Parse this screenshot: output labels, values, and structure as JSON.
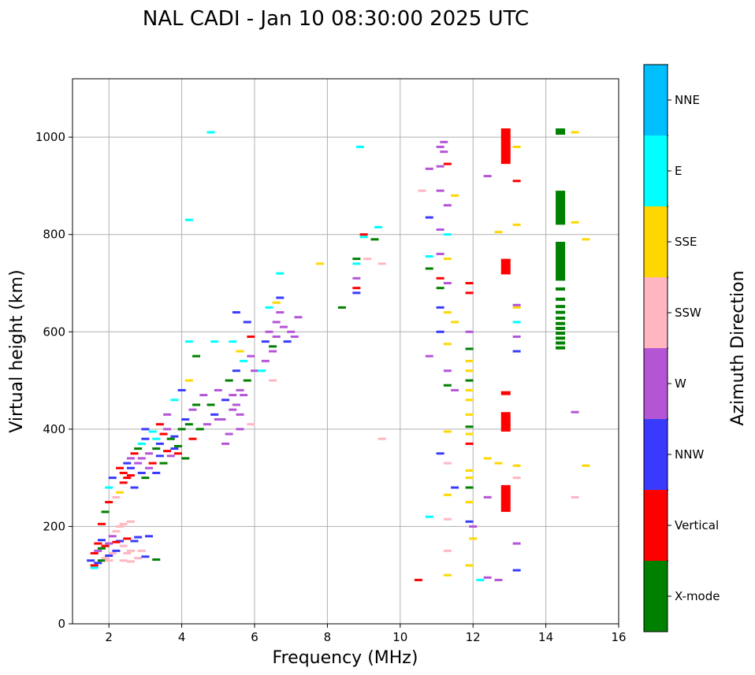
{
  "chart_data": {
    "type": "scatter",
    "title": "NAL CADI - Jan 10 08:30:00 2025 UTC",
    "xlabel": "Frequency (MHz)",
    "ylabel": "Virtual height (km)",
    "xlim": [
      1,
      16
    ],
    "ylim": [
      0,
      1120
    ],
    "xticks": [
      2,
      4,
      6,
      8,
      10,
      12,
      14,
      16
    ],
    "yticks": [
      0,
      200,
      400,
      600,
      800,
      1000
    ],
    "grid": true,
    "colorbar": {
      "label": "Azimuth Direction",
      "categories": [
        {
          "name": "X-mode",
          "color": "#008000"
        },
        {
          "name": "Vertical",
          "color": "#ff0000"
        },
        {
          "name": "NNW",
          "color": "#3a3aff"
        },
        {
          "name": "W",
          "color": "#b455d6"
        },
        {
          "name": "SSW",
          "color": "#ffb6c1"
        },
        {
          "name": "SSE",
          "color": "#ffd700"
        },
        {
          "name": "E",
          "color": "#00ffff"
        },
        {
          "name": "NNE",
          "color": "#00bfff"
        }
      ]
    },
    "points": [
      [
        1.6,
        120,
        "Vertical"
      ],
      [
        1.7,
        125,
        "NNW"
      ],
      [
        1.8,
        130,
        "X-mode"
      ],
      [
        1.9,
        135,
        "SSW"
      ],
      [
        2.0,
        140,
        "NNW"
      ],
      [
        1.6,
        145,
        "Vertical"
      ],
      [
        1.7,
        150,
        "W"
      ],
      [
        1.8,
        155,
        "X-mode"
      ],
      [
        2.1,
        145,
        "SSW"
      ],
      [
        2.2,
        150,
        "NNW"
      ],
      [
        1.9,
        160,
        "Vertical"
      ],
      [
        2.0,
        165,
        "W"
      ],
      [
        2.3,
        170,
        "NNW"
      ],
      [
        2.5,
        175,
        "Vertical"
      ],
      [
        2.4,
        160,
        "SSW"
      ],
      [
        2.6,
        150,
        "SSW"
      ],
      [
        1.7,
        165,
        "Vertical"
      ],
      [
        1.8,
        172,
        "NNW"
      ],
      [
        1.5,
        130,
        "NNW"
      ],
      [
        1.6,
        115,
        "E"
      ],
      [
        2.1,
        180,
        "W"
      ],
      [
        2.2,
        190,
        "SSW"
      ],
      [
        2.4,
        205,
        "SSW"
      ],
      [
        2.6,
        210,
        "SSW"
      ],
      [
        2.3,
        200,
        "SSW"
      ],
      [
        2.0,
        130,
        "SSW"
      ],
      [
        2.4,
        130,
        "SSW"
      ],
      [
        2.6,
        128,
        "SSW"
      ],
      [
        2.8,
        135,
        "SSW"
      ],
      [
        2.5,
        145,
        "SSW"
      ],
      [
        3.1,
        180,
        "NNW"
      ],
      [
        2.8,
        178,
        "NNW"
      ],
      [
        2.9,
        150,
        "SSW"
      ],
      [
        3.3,
        132,
        "X-mode"
      ],
      [
        3.0,
        138,
        "NNW"
      ],
      [
        2.2,
        168,
        "Vertical"
      ],
      [
        2.7,
        170,
        "NNW"
      ],
      [
        1.8,
        205,
        "Vertical"
      ],
      [
        1.9,
        230,
        "X-mode"
      ],
      [
        2.0,
        250,
        "Vertical"
      ],
      [
        2.0,
        280,
        "E"
      ],
      [
        2.1,
        300,
        "NNW"
      ],
      [
        2.2,
        260,
        "SSW"
      ],
      [
        2.3,
        320,
        "Vertical"
      ],
      [
        2.4,
        310,
        "Vertical"
      ],
      [
        2.5,
        330,
        "NNW"
      ],
      [
        2.6,
        340,
        "W"
      ],
      [
        2.7,
        350,
        "Vertical"
      ],
      [
        2.8,
        360,
        "X-mode"
      ],
      [
        2.9,
        370,
        "E"
      ],
      [
        3.0,
        380,
        "NNW"
      ],
      [
        3.1,
        350,
        "W"
      ],
      [
        3.2,
        330,
        "Vertical"
      ],
      [
        3.3,
        360,
        "X-mode"
      ],
      [
        3.4,
        370,
        "NNW"
      ],
      [
        3.5,
        390,
        "Vertical"
      ],
      [
        3.6,
        400,
        "W"
      ],
      [
        3.7,
        380,
        "X-mode"
      ],
      [
        3.8,
        360,
        "NNW"
      ],
      [
        3.9,
        350,
        "Vertical"
      ],
      [
        4.0,
        400,
        "X-mode"
      ],
      [
        4.1,
        420,
        "NNW"
      ],
      [
        4.2,
        410,
        "X-mode"
      ],
      [
        4.3,
        440,
        "W"
      ],
      [
        2.4,
        290,
        "Vertical"
      ],
      [
        2.5,
        300,
        "Vertical"
      ],
      [
        2.6,
        320,
        "NNW"
      ],
      [
        2.3,
        270,
        "SSE"
      ],
      [
        2.7,
        280,
        "NNW"
      ],
      [
        2.8,
        330,
        "W"
      ],
      [
        2.9,
        310,
        "NNW"
      ],
      [
        3.0,
        300,
        "X-mode"
      ],
      [
        3.1,
        320,
        "W"
      ],
      [
        3.3,
        310,
        "NNW"
      ],
      [
        3.5,
        330,
        "X-mode"
      ],
      [
        3.7,
        345,
        "W"
      ],
      [
        3.9,
        365,
        "X-mode"
      ],
      [
        4.1,
        340,
        "X-mode"
      ],
      [
        4.3,
        380,
        "Vertical"
      ],
      [
        3.2,
        395,
        "E"
      ],
      [
        3.4,
        410,
        "Vertical"
      ],
      [
        3.6,
        430,
        "W"
      ],
      [
        3.8,
        460,
        "E"
      ],
      [
        4.0,
        480,
        "NNW"
      ],
      [
        4.2,
        500,
        "SSE"
      ],
      [
        4.4,
        450,
        "X-mode"
      ],
      [
        4.6,
        470,
        "W"
      ],
      [
        3.0,
        400,
        "NNW"
      ],
      [
        3.3,
        380,
        "E"
      ],
      [
        2.9,
        340,
        "W"
      ],
      [
        2.6,
        305,
        "Vertical"
      ],
      [
        3.4,
        345,
        "NNW"
      ],
      [
        3.6,
        355,
        "Vertical"
      ],
      [
        3.8,
        385,
        "NNW"
      ],
      [
        4.5,
        400,
        "X-mode"
      ],
      [
        4.7,
        410,
        "W"
      ],
      [
        4.8,
        450,
        "X-mode"
      ],
      [
        4.9,
        430,
        "NNW"
      ],
      [
        5.0,
        480,
        "W"
      ],
      [
        5.1,
        420,
        "W"
      ],
      [
        5.2,
        460,
        "NNW"
      ],
      [
        5.3,
        500,
        "X-mode"
      ],
      [
        5.4,
        440,
        "W"
      ],
      [
        5.5,
        520,
        "NNW"
      ],
      [
        5.6,
        480,
        "W"
      ],
      [
        5.7,
        540,
        "E"
      ],
      [
        5.8,
        500,
        "X-mode"
      ],
      [
        5.9,
        550,
        "W"
      ],
      [
        6.0,
        520,
        "W"
      ],
      [
        5.5,
        450,
        "W"
      ],
      [
        5.6,
        430,
        "W"
      ],
      [
        5.7,
        470,
        "W"
      ],
      [
        5.3,
        390,
        "W"
      ],
      [
        5.6,
        400,
        "W"
      ],
      [
        5.9,
        410,
        "SSW"
      ],
      [
        5.2,
        370,
        "W"
      ],
      [
        5.6,
        560,
        "SSE"
      ],
      [
        5.4,
        580,
        "E"
      ],
      [
        5.9,
        590,
        "Vertical"
      ],
      [
        5.8,
        620,
        "NNW"
      ],
      [
        5.5,
        640,
        "NNW"
      ],
      [
        4.9,
        580,
        "E"
      ],
      [
        4.4,
        550,
        "X-mode"
      ],
      [
        4.2,
        580,
        "E"
      ],
      [
        4.8,
        1010,
        "E"
      ],
      [
        4.2,
        830,
        "E"
      ],
      [
        5.0,
        420,
        "W"
      ],
      [
        5.4,
        470,
        "W"
      ],
      [
        6.2,
        520,
        "E"
      ],
      [
        6.3,
        580,
        "NNW"
      ],
      [
        6.4,
        600,
        "W"
      ],
      [
        6.5,
        570,
        "X-mode"
      ],
      [
        6.6,
        620,
        "W"
      ],
      [
        6.7,
        640,
        "W"
      ],
      [
        6.5,
        560,
        "W"
      ],
      [
        6.6,
        590,
        "W"
      ],
      [
        6.8,
        610,
        "W"
      ],
      [
        7.0,
        600,
        "W"
      ],
      [
        7.1,
        590,
        "W"
      ],
      [
        6.4,
        650,
        "E"
      ],
      [
        6.6,
        660,
        "SSE"
      ],
      [
        6.7,
        670,
        "NNW"
      ],
      [
        6.3,
        540,
        "W"
      ],
      [
        6.5,
        500,
        "SSW"
      ],
      [
        6.7,
        720,
        "E"
      ],
      [
        7.2,
        630,
        "W"
      ],
      [
        6.9,
        580,
        "NNW"
      ],
      [
        7.8,
        740,
        "SSE"
      ],
      [
        8.4,
        650,
        "X-mode"
      ],
      [
        8.8,
        680,
        "NNW"
      ],
      [
        8.8,
        690,
        "Vertical"
      ],
      [
        8.8,
        710,
        "W"
      ],
      [
        8.8,
        740,
        "E"
      ],
      [
        8.8,
        750,
        "X-mode"
      ],
      [
        9.0,
        800,
        "Vertical"
      ],
      [
        9.1,
        750,
        "SSW"
      ],
      [
        9.0,
        795,
        "E"
      ],
      [
        8.9,
        980,
        "E"
      ],
      [
        9.3,
        790,
        "X-mode"
      ],
      [
        9.4,
        815,
        "E"
      ],
      [
        9.5,
        740,
        "SSW"
      ],
      [
        9.5,
        380,
        "SSW"
      ],
      [
        10.5,
        90,
        "Vertical"
      ],
      [
        10.8,
        220,
        "E"
      ],
      [
        10.8,
        550,
        "W"
      ],
      [
        10.8,
        730,
        "X-mode"
      ],
      [
        10.8,
        755,
        "E"
      ],
      [
        10.8,
        835,
        "NNW"
      ],
      [
        10.8,
        935,
        "W"
      ],
      [
        10.6,
        890,
        "SSW"
      ],
      [
        11.1,
        350,
        "NNW"
      ],
      [
        11.1,
        600,
        "NNW"
      ],
      [
        11.1,
        650,
        "NNW"
      ],
      [
        11.1,
        690,
        "X-mode"
      ],
      [
        11.1,
        710,
        "Vertical"
      ],
      [
        11.1,
        760,
        "W"
      ],
      [
        11.1,
        810,
        "W"
      ],
      [
        11.1,
        890,
        "W"
      ],
      [
        11.1,
        940,
        "W"
      ],
      [
        11.1,
        980,
        "W"
      ],
      [
        11.2,
        970,
        "W"
      ],
      [
        11.2,
        990,
        "W"
      ],
      [
        11.3,
        100,
        "SSE"
      ],
      [
        11.3,
        150,
        "SSW"
      ],
      [
        11.3,
        215,
        "SSW"
      ],
      [
        11.3,
        265,
        "SSE"
      ],
      [
        11.3,
        330,
        "SSW"
      ],
      [
        11.3,
        395,
        "SSE"
      ],
      [
        11.3,
        490,
        "X-mode"
      ],
      [
        11.3,
        520,
        "W"
      ],
      [
        11.3,
        575,
        "SSE"
      ],
      [
        11.3,
        640,
        "SSE"
      ],
      [
        11.3,
        700,
        "W"
      ],
      [
        11.3,
        750,
        "SSE"
      ],
      [
        11.3,
        800,
        "E"
      ],
      [
        11.3,
        860,
        "W"
      ],
      [
        11.3,
        945,
        "Vertical"
      ],
      [
        11.5,
        280,
        "NNW"
      ],
      [
        11.5,
        480,
        "W"
      ],
      [
        11.5,
        620,
        "SSE"
      ],
      [
        11.5,
        880,
        "SSE"
      ],
      [
        11.9,
        120,
        "SSE"
      ],
      [
        11.9,
        210,
        "NNW"
      ],
      [
        11.9,
        250,
        "SSE"
      ],
      [
        11.9,
        280,
        "X-mode"
      ],
      [
        11.9,
        300,
        "SSE"
      ],
      [
        11.9,
        315,
        "SSE"
      ],
      [
        11.9,
        370,
        "Vertical"
      ],
      [
        11.9,
        390,
        "SSE"
      ],
      [
        11.9,
        405,
        "X-mode"
      ],
      [
        11.9,
        430,
        "SSE"
      ],
      [
        11.9,
        460,
        "SSE"
      ],
      [
        11.9,
        480,
        "SSE"
      ],
      [
        11.9,
        500,
        "X-mode"
      ],
      [
        11.9,
        520,
        "SSE"
      ],
      [
        11.9,
        540,
        "SSE"
      ],
      [
        11.9,
        565,
        "X-mode"
      ],
      [
        11.9,
        600,
        "W"
      ],
      [
        11.9,
        680,
        "Vertical"
      ],
      [
        11.9,
        700,
        "Vertical"
      ],
      [
        12.0,
        200,
        "W"
      ],
      [
        12.0,
        175,
        "SSE"
      ],
      [
        12.2,
        90,
        "E"
      ],
      [
        12.4,
        95,
        "W"
      ],
      [
        12.4,
        260,
        "W"
      ],
      [
        12.4,
        340,
        "SSE"
      ],
      [
        12.4,
        920,
        "W"
      ],
      [
        12.7,
        90,
        "W"
      ],
      [
        12.7,
        330,
        "SSE"
      ],
      [
        12.7,
        805,
        "SSE"
      ],
      [
        13.2,
        110,
        "NNW"
      ],
      [
        13.2,
        165,
        "W"
      ],
      [
        13.2,
        300,
        "SSW"
      ],
      [
        13.2,
        325,
        "SSE"
      ],
      [
        13.2,
        560,
        "NNW"
      ],
      [
        13.2,
        590,
        "W"
      ],
      [
        13.2,
        620,
        "E"
      ],
      [
        13.2,
        650,
        "SSE"
      ],
      [
        13.2,
        655,
        "W"
      ],
      [
        13.2,
        820,
        "SSE"
      ],
      [
        13.2,
        910,
        "Vertical"
      ],
      [
        13.2,
        980,
        "SSE"
      ],
      [
        14.8,
        260,
        "SSW"
      ],
      [
        14.8,
        435,
        "W"
      ],
      [
        14.8,
        825,
        "SSE"
      ],
      [
        14.8,
        1010,
        "SSE"
      ],
      [
        15.1,
        325,
        "SSE"
      ],
      [
        15.1,
        790,
        "SSE"
      ]
    ],
    "blocks": [
      {
        "x": 12.9,
        "y1": 230,
        "y2": 285,
        "cat": "Vertical"
      },
      {
        "x": 12.9,
        "y1": 395,
        "y2": 435,
        "cat": "Vertical"
      },
      {
        "x": 12.9,
        "y1": 470,
        "y2": 478,
        "cat": "Vertical"
      },
      {
        "x": 12.9,
        "y1": 718,
        "y2": 750,
        "cat": "Vertical"
      },
      {
        "x": 12.9,
        "y1": 945,
        "y2": 1018,
        "cat": "Vertical"
      },
      {
        "x": 14.4,
        "y1": 820,
        "y2": 890,
        "cat": "X-mode"
      },
      {
        "x": 14.4,
        "y1": 705,
        "y2": 785,
        "cat": "X-mode"
      },
      {
        "x": 14.4,
        "y1": 1005,
        "y2": 1018,
        "cat": "X-mode"
      }
    ],
    "stripes": [
      {
        "x": 14.4,
        "heights": [
          567,
          577,
          587,
          597,
          607,
          617,
          628,
          640,
          652,
          667,
          688
        ],
        "cat": "X-mode"
      }
    ]
  }
}
